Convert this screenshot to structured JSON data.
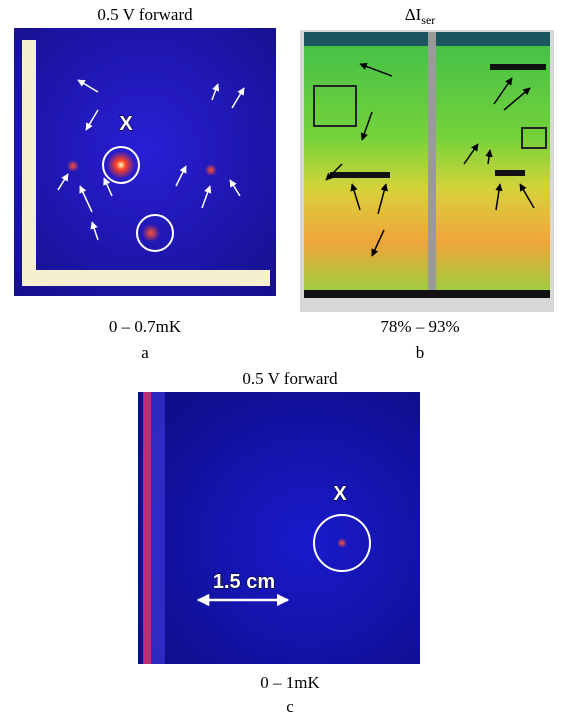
{
  "panels": [
    {
      "title": "0.5 V forward",
      "marker": "X",
      "range": "0 – 0.7mK",
      "label": "a"
    },
    {
      "title": {
        "main": "ΔI",
        "sub": "ser"
      },
      "range": "78% – 93%",
      "label": "b"
    },
    {
      "title": "0.5 V forward",
      "marker": "X",
      "scale": "1.5 cm",
      "range": "0 – 1mK",
      "label": "c"
    }
  ]
}
